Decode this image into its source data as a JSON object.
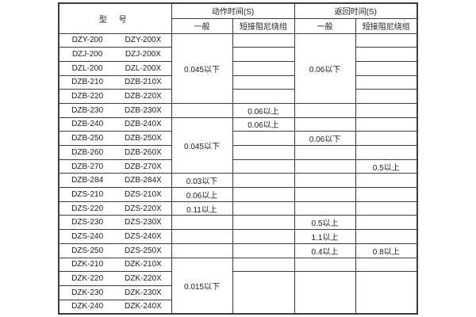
{
  "header": {
    "model": "型 号",
    "action_time": "动作时间(S)",
    "return_time": "返回时间(S)",
    "general": "一般",
    "damping": "短接阻尼绕组"
  },
  "rows": [
    {
      "m1": "DZY-200",
      "m2": "DZY-200X"
    },
    {
      "m1": "DZJ-200",
      "m2": "DZJ-200X"
    },
    {
      "m1": "DZL-200",
      "m2": "DZL-200X"
    },
    {
      "m1": "DZB-210",
      "m2": "DZB-210X"
    },
    {
      "m1": "DZB-220",
      "m2": "DZB-220X"
    },
    {
      "m1": "DZB-230",
      "m2": "DZB-230X"
    },
    {
      "m1": "DZB-240",
      "m2": "DZB-240X"
    },
    {
      "m1": "DZB-250",
      "m2": "DZB-250X"
    },
    {
      "m1": "DZB-260",
      "m2": "DZB-260X"
    },
    {
      "m1": "DZB-270",
      "m2": "DZB-270X"
    },
    {
      "m1": "DZB-284",
      "m2": "DZB-284X"
    },
    {
      "m1": "DZS-210",
      "m2": "DZS-210X"
    },
    {
      "m1": "DZS-220",
      "m2": "DZS-220X"
    },
    {
      "m1": "DZS-230",
      "m2": "DZS-230X"
    },
    {
      "m1": "DZS-240",
      "m2": "DZS-240X"
    },
    {
      "m1": "DZS-250",
      "m2": "DZS-250X"
    },
    {
      "m1": "DZK-210",
      "m2": "DZK-210X"
    },
    {
      "m1": "DZK-220",
      "m2": "DZK-220X"
    },
    {
      "m1": "DZK-230",
      "m2": "DZK-230X"
    },
    {
      "m1": "DZK-240",
      "m2": "DZK-240X"
    }
  ],
  "cells": {
    "act_gen_block1": "0.045以下",
    "act_gen_block2": "0.045以下",
    "act_gen_dzb284": "0.03以下",
    "act_gen_dzs210": "0.06以上",
    "act_gen_dzs220": "0.11以上",
    "act_gen_dzk": "0.015以下",
    "act_damp_dzb230": "0.06以上",
    "act_damp_dzb240": "0.06以上",
    "ret_gen_block1": "0.06以下",
    "ret_gen_dzb250": "0.06以下",
    "ret_gen_dzs230": "0.5以上",
    "ret_gen_dzs240": "1.1以上",
    "ret_gen_dzs250": "0.4以上",
    "ret_damp_dzb270": "0.5以上",
    "ret_damp_dzs250": "0.8以上"
  },
  "colors": {
    "border": "#3b3b3b",
    "text": "#1c1c1c",
    "background": "#ffffff"
  }
}
